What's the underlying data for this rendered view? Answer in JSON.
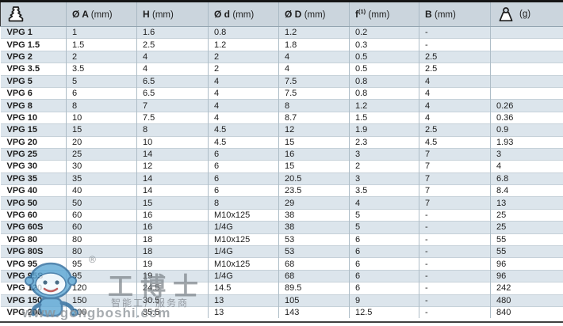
{
  "table": {
    "header": {
      "product_icon": "bellows-suction-cup-icon",
      "columns": [
        {
          "symbol": "Ø A",
          "unit": "(mm)"
        },
        {
          "symbol": "H",
          "unit": "(mm)"
        },
        {
          "symbol": "Ø d",
          "unit": "(mm)"
        },
        {
          "symbol": "Ø D",
          "unit": "(mm)"
        },
        {
          "symbol": "f",
          "sup": "(1)",
          "unit": "(mm)"
        },
        {
          "symbol": "B",
          "unit": "(mm)"
        },
        {
          "icon": "weight-icon",
          "unit": "(g)"
        }
      ]
    },
    "rows": [
      {
        "model": "VPG 1",
        "values": [
          "1",
          "1.6",
          "0.8",
          "1.2",
          "0.2",
          "-",
          ""
        ]
      },
      {
        "model": "VPG 1.5",
        "values": [
          "1.5",
          "2.5",
          "1.2",
          "1.8",
          "0.3",
          "-",
          ""
        ]
      },
      {
        "model": "VPG 2",
        "values": [
          "2",
          "4",
          "2",
          "4",
          "0.5",
          "2.5",
          ""
        ]
      },
      {
        "model": "VPG 3.5",
        "values": [
          "3.5",
          "4",
          "2",
          "4",
          "0.5",
          "2.5",
          ""
        ]
      },
      {
        "model": "VPG 5",
        "values": [
          "5",
          "6.5",
          "4",
          "7.5",
          "0.8",
          "4",
          ""
        ]
      },
      {
        "model": "VPG 6",
        "values": [
          "6",
          "6.5",
          "4",
          "7.5",
          "0.8",
          "4",
          ""
        ]
      },
      {
        "model": "VPG 8",
        "values": [
          "8",
          "7",
          "4",
          "8",
          "1.2",
          "4",
          "0.26"
        ]
      },
      {
        "model": "VPG 10",
        "values": [
          "10",
          "7.5",
          "4",
          "8.7",
          "1.5",
          "4",
          "0.36"
        ]
      },
      {
        "model": "VPG 15",
        "values": [
          "15",
          "8",
          "4.5",
          "12",
          "1.9",
          "2.5",
          "0.9"
        ]
      },
      {
        "model": "VPG 20",
        "values": [
          "20",
          "10",
          "4.5",
          "15",
          "2.3",
          "4.5",
          "1.93"
        ]
      },
      {
        "model": "VPG 25",
        "values": [
          "25",
          "14",
          "6",
          "16",
          "3",
          "7",
          "3"
        ]
      },
      {
        "model": "VPG 30",
        "values": [
          "30",
          "12",
          "6",
          "15",
          "2",
          "7",
          "4"
        ]
      },
      {
        "model": "VPG 35",
        "values": [
          "35",
          "14",
          "6",
          "20.5",
          "3",
          "7",
          "6.8"
        ]
      },
      {
        "model": "VPG 40",
        "values": [
          "40",
          "14",
          "6",
          "23.5",
          "3.5",
          "7",
          "8.4"
        ]
      },
      {
        "model": "VPG 50",
        "values": [
          "50",
          "15",
          "8",
          "29",
          "4",
          "7",
          "13"
        ]
      },
      {
        "model": "VPG 60",
        "values": [
          "60",
          "16",
          "M10x125",
          "38",
          "5",
          "-",
          "25"
        ]
      },
      {
        "model": "VPG 60S",
        "values": [
          "60",
          "16",
          "1/4G",
          "38",
          "5",
          "-",
          "25"
        ]
      },
      {
        "model": "VPG 80",
        "values": [
          "80",
          "18",
          "M10x125",
          "53",
          "6",
          "-",
          "55"
        ]
      },
      {
        "model": "VPG 80S",
        "values": [
          "80",
          "18",
          "1/4G",
          "53",
          "6",
          "-",
          "55"
        ]
      },
      {
        "model": "VPG 95",
        "values": [
          "95",
          "19",
          "M10x125",
          "68",
          "6",
          "-",
          "96"
        ]
      },
      {
        "model": "VPG 95S",
        "values": [
          "95",
          "19",
          "1/4G",
          "68",
          "6",
          "-",
          "96"
        ]
      },
      {
        "model": "VPG 120",
        "values": [
          "120",
          "24.5",
          "14.5",
          "89.5",
          "6",
          "-",
          "242"
        ]
      },
      {
        "model": "VPG 150",
        "values": [
          "150",
          "30.5",
          "13",
          "105",
          "9",
          "-",
          "480"
        ]
      },
      {
        "model": "VPG 200",
        "values": [
          "200",
          "35.5",
          "13",
          "143",
          "12.5",
          "-",
          "840"
        ]
      }
    ]
  },
  "watermark": {
    "registered": "®",
    "brand": "工博士",
    "tagline": "智能工厂服务商",
    "url": "www.gongboshi.com",
    "mascot_icon": "gongboshi-robot-mascot"
  },
  "colors": {
    "header_bg": "#cbd5dd",
    "row_blue": "#dce5ec",
    "row_white": "#ffffff",
    "grid_line": "#aebdc7",
    "top_rule": "#151515",
    "bottom_rule": "#3f3f3f",
    "text": "#1d1d1d",
    "watermark_gray": "#7d8389",
    "mascot_blue": "#5fa9d6"
  }
}
